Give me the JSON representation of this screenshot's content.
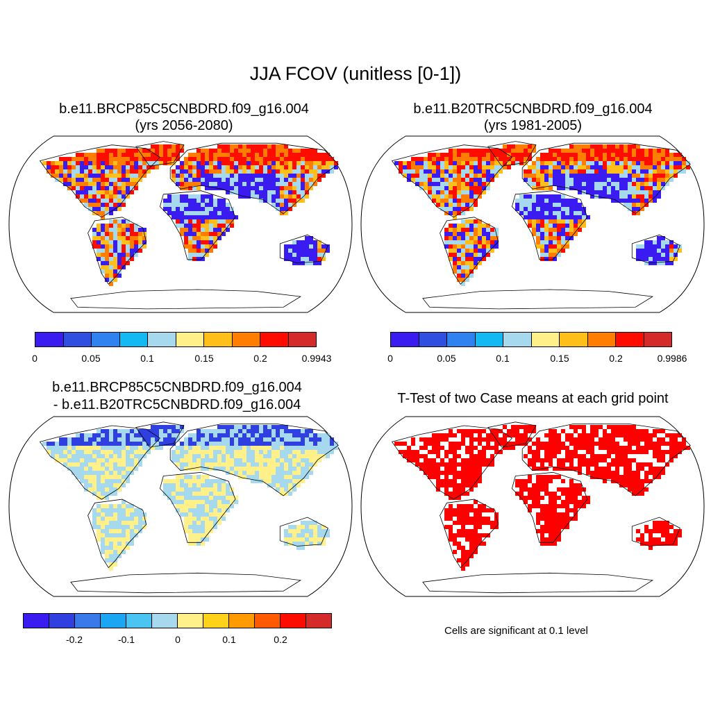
{
  "title": "JJA FCOV (unitless [0-1])",
  "panels": [
    {
      "title_line1": "b.e11.BRCP85C5CNBDRD.f09_g16.004",
      "title_line2": "(yrs 2056-2080)",
      "colorbar": {
        "colors": [
          "#3a1cf0",
          "#2f4fe0",
          "#2f82f0",
          "#14b8f2",
          "#a6d8ee",
          "#fff08a",
          "#ffbf1a",
          "#ff7d00",
          "#ff0c00",
          "#d42a2a"
        ],
        "tick_labels": [
          "0",
          "0.05",
          "0.1",
          "0.15",
          "0.2",
          "0.9943"
        ]
      }
    },
    {
      "title_line1": "b.e11.B20TRC5CNBDRD.f09_g16.004",
      "title_line2": "(yrs 1981-2005)",
      "colorbar": {
        "colors": [
          "#3a1cf0",
          "#2f4fe0",
          "#2f82f0",
          "#14b8f2",
          "#a6d8ee",
          "#fff08a",
          "#ffbf1a",
          "#ff7d00",
          "#ff0c00",
          "#d42a2a"
        ],
        "tick_labels": [
          "0",
          "0.05",
          "0.1",
          "0.15",
          "0.2",
          "0.9986"
        ]
      }
    },
    {
      "title_line1": "b.e11.BRCP85C5CNBDRD.f09_g16.004",
      "title_line2": "- b.e11.B20TRC5CNBDRD.f09_g16.004",
      "colorbar": {
        "colors": [
          "#3a1cf0",
          "#2f3fe0",
          "#3a7ae8",
          "#1aa6f2",
          "#4cc4f2",
          "#a6d8ee",
          "#fff08a",
          "#ffd21a",
          "#ff9a00",
          "#ff5a00",
          "#ff0c00",
          "#d42a2a"
        ],
        "tick_labels": [
          "-0.2",
          "-0.1",
          "0",
          "0.1",
          "0.2"
        ]
      }
    },
    {
      "title_line1": "T-Test of two Case means at each grid point",
      "note": "Cells are significant at 0.1 level"
    }
  ],
  "map_fill": {
    "panel1": [
      "#3a1cf0",
      "#ffbf1a",
      "#ff7d00",
      "#ff0c00",
      "#a6d8ee"
    ],
    "panel2": [
      "#3a1cf0",
      "#ffbf1a",
      "#ff7d00",
      "#ff0c00",
      "#a6d8ee"
    ],
    "panel3": [
      "#a6d8ee",
      "#fff08a",
      "#2f3fe0"
    ],
    "panel4": [
      "#ff0000",
      "#ffffff"
    ]
  }
}
